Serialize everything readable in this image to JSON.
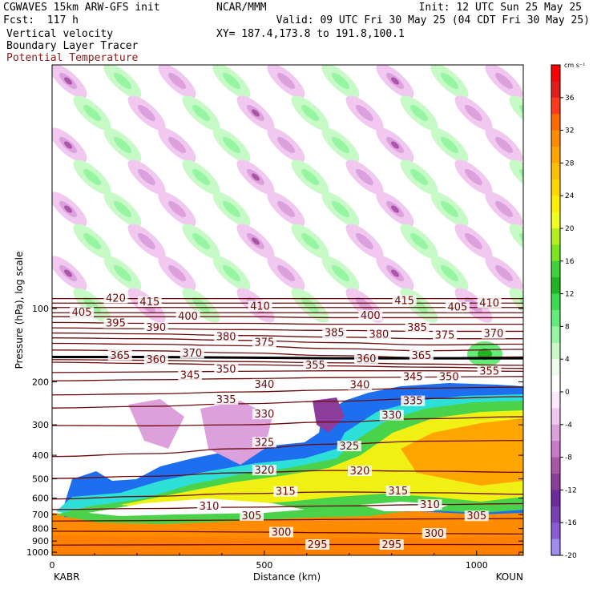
{
  "header": {
    "model": "CGWAVES 15km ARW-GFS init",
    "org": "NCAR/MMM",
    "init": "Init: 12 UTC Sun 25 May 25",
    "fcst": "Fcst:  117 h",
    "valid": "Valid: 09 UTC Fri 30 May 25 (04 CDT Fri 30 May 25)",
    "field1": "Vertical velocity",
    "xy": "XY= 187.4,173.8 to 191.8,100.1",
    "field2": "Boundary Layer Tracer",
    "field3": "Potential Temperature"
  },
  "colors": {
    "theta_line": "#6b0a0a",
    "theta_label_text": "#6b0a0a",
    "field3_text": "#8b1a1a",
    "tropopause": "#000000"
  },
  "chart_data": {
    "type": "heatmap",
    "title": "Vertical velocity / Boundary Layer Tracer / Potential Temperature cross-section",
    "xlabel": "Distance (km)",
    "ylabel": "Pressure (hPa), log scale",
    "y_scale": "log",
    "xlim": [
      0,
      1110
    ],
    "ylim": [
      1030,
      10
    ],
    "x_ticks": [
      0,
      500,
      1000
    ],
    "y_ticks": [
      100,
      200,
      300,
      400,
      500,
      600,
      700,
      800,
      900,
      1000
    ],
    "endpoints": {
      "left": "KABR",
      "right": "KOUN"
    },
    "colorbar": {
      "unit": "cm s⁻¹",
      "labels": [
        36,
        32,
        28,
        24,
        20,
        16,
        12,
        8,
        4,
        0,
        -4,
        -8,
        -12,
        -16,
        -20
      ],
      "bins": [
        {
          "v": 38,
          "color": "#ff0000"
        },
        {
          "v": 36,
          "color": "#e01e1e"
        },
        {
          "v": 34,
          "color": "#ff3a1a"
        },
        {
          "v": 32,
          "color": "#ff6a00"
        },
        {
          "v": 30,
          "color": "#ff8c00"
        },
        {
          "v": 28,
          "color": "#ffa500"
        },
        {
          "v": 26,
          "color": "#ffbe00"
        },
        {
          "v": 24,
          "color": "#ffd700"
        },
        {
          "v": 22,
          "color": "#ffee00"
        },
        {
          "v": 20,
          "color": "#f0ff1e"
        },
        {
          "v": 18,
          "color": "#b4f01e"
        },
        {
          "v": 16,
          "color": "#78e61e"
        },
        {
          "v": 14,
          "color": "#3cd23c"
        },
        {
          "v": 12,
          "color": "#20b420"
        },
        {
          "v": 10,
          "color": "#3cdc50"
        },
        {
          "v": 8,
          "color": "#64ec7a"
        },
        {
          "v": 6,
          "color": "#96f5a0"
        },
        {
          "v": 4,
          "color": "#c8fac8"
        },
        {
          "v": 2,
          "color": "#eefcee"
        },
        {
          "v": 0,
          "color": "#ffffff"
        },
        {
          "v": -2,
          "color": "#fbeafb"
        },
        {
          "v": -4,
          "color": "#f0c8f0"
        },
        {
          "v": -6,
          "color": "#dca0dc"
        },
        {
          "v": -8,
          "color": "#c878c8"
        },
        {
          "v": -10,
          "color": "#aa55aa"
        },
        {
          "v": -12,
          "color": "#8c3c9b"
        },
        {
          "v": -14,
          "color": "#6e28a0"
        },
        {
          "v": -16,
          "color": "#7840b4"
        },
        {
          "v": -18,
          "color": "#8c5ad2"
        },
        {
          "v": -20,
          "color": "#a08cf0"
        }
      ]
    },
    "theta_contours": [
      {
        "value": 295,
        "p": [
          935,
          933,
          931,
          930,
          930,
          931
        ]
      },
      {
        "value": 300,
        "p": [
          820,
          822,
          826,
          832,
          838,
          842
        ]
      },
      {
        "value": 305,
        "p": [
          745,
          742,
          738,
          734,
          730,
          728
        ]
      },
      {
        "value": 310,
        "p": [
          668,
          662,
          654,
          646,
          638,
          632
        ]
      },
      {
        "value": 315,
        "p": [
          605,
          590,
          575,
          566,
          570,
          578
        ]
      },
      {
        "value": 320,
        "p": [
          498,
          488,
          472,
          462,
          465,
          470
        ]
      },
      {
        "value": 325,
        "p": [
          405,
          394,
          376,
          360,
          350,
          348
        ]
      },
      {
        "value": 330,
        "p": [
          302,
          303,
          300,
          292,
          283,
          278
        ]
      },
      {
        "value": 335,
        "p": [
          256,
          252,
          246,
          240,
          234,
          230
        ]
      },
      {
        "value": 340,
        "p": [
          226,
          224,
          220,
          216,
          212,
          210
        ]
      },
      {
        "value": 345,
        "p": [
          198,
          196,
          194,
          192,
          191,
          190
        ]
      },
      {
        "value": 350,
        "p": [
          183,
          182,
          181,
          180,
          180,
          181
        ]
      },
      {
        "value": 355,
        "p": [
          166,
          168,
          170,
          172,
          174,
          176
        ]
      },
      {
        "value": 360,
        "p": [
          162,
          163,
          165,
          167,
          169,
          171
        ]
      },
      {
        "value": 370,
        "p": [
          148,
          149,
          152,
          156,
          159,
          158
        ]
      },
      {
        "value": 375,
        "p": [
          139,
          140,
          142,
          146,
          149,
          147
        ]
      },
      {
        "value": 380,
        "p": [
          132,
          133,
          135,
          138,
          141,
          140
        ]
      },
      {
        "value": 385,
        "p": [
          126,
          127,
          129,
          131,
          133,
          133
        ]
      },
      {
        "value": 390,
        "p": [
          120,
          121,
          122,
          123,
          124,
          124
        ]
      },
      {
        "value": 395,
        "p": [
          114,
          115,
          115,
          116,
          116,
          116
        ]
      },
      {
        "value": 400,
        "p": [
          108,
          108,
          108,
          109,
          109,
          109
        ]
      },
      {
        "value": 405,
        "p": [
          104,
          104,
          104,
          104,
          104,
          104
        ]
      },
      {
        "value": 410,
        "p": [
          99,
          99,
          99,
          99,
          99,
          99
        ]
      },
      {
        "value": 415,
        "p": [
          95,
          95,
          95,
          95,
          95,
          95
        ]
      },
      {
        "value": 420,
        "p": [
          91,
          91,
          91,
          91,
          91,
          91
        ]
      }
    ],
    "theta_labels": [
      {
        "v": "420",
        "x": 150,
        "p": 91
      },
      {
        "v": "415",
        "x": 230,
        "p": 94
      },
      {
        "v": "410",
        "x": 490,
        "p": 98
      },
      {
        "v": "415",
        "x": 830,
        "p": 93
      },
      {
        "v": "405",
        "x": 955,
        "p": 99
      },
      {
        "v": "410",
        "x": 1030,
        "p": 95
      },
      {
        "v": "405",
        "x": 70,
        "p": 104
      },
      {
        "v": "400",
        "x": 320,
        "p": 108
      },
      {
        "v": "400",
        "x": 750,
        "p": 107
      },
      {
        "v": "395",
        "x": 150,
        "p": 115
      },
      {
        "v": "390",
        "x": 245,
        "p": 120
      },
      {
        "v": "385",
        "x": 665,
        "p": 126
      },
      {
        "v": "385",
        "x": 860,
        "p": 120
      },
      {
        "v": "380",
        "x": 410,
        "p": 131
      },
      {
        "v": "375",
        "x": 500,
        "p": 138
      },
      {
        "v": "380",
        "x": 770,
        "p": 128
      },
      {
        "v": "375",
        "x": 925,
        "p": 129
      },
      {
        "v": "370",
        "x": 1040,
        "p": 127
      },
      {
        "v": "365",
        "x": 160,
        "p": 156
      },
      {
        "v": "360",
        "x": 245,
        "p": 162
      },
      {
        "v": "370",
        "x": 330,
        "p": 153
      },
      {
        "v": "360",
        "x": 740,
        "p": 161
      },
      {
        "v": "365",
        "x": 870,
        "p": 156
      },
      {
        "v": "355",
        "x": 620,
        "p": 171
      },
      {
        "v": "350",
        "x": 410,
        "p": 178
      },
      {
        "v": "355",
        "x": 1030,
        "p": 181
      },
      {
        "v": "345",
        "x": 325,
        "p": 188
      },
      {
        "v": "345",
        "x": 850,
        "p": 191
      },
      {
        "v": "350",
        "x": 935,
        "p": 191
      },
      {
        "v": "340",
        "x": 500,
        "p": 205
      },
      {
        "v": "340",
        "x": 725,
        "p": 206
      },
      {
        "v": "335",
        "x": 410,
        "p": 237
      },
      {
        "v": "335",
        "x": 850,
        "p": 240
      },
      {
        "v": "330",
        "x": 500,
        "p": 272
      },
      {
        "v": "330",
        "x": 800,
        "p": 275
      },
      {
        "v": "325",
        "x": 500,
        "p": 355
      },
      {
        "v": "325",
        "x": 700,
        "p": 368
      },
      {
        "v": "320",
        "x": 500,
        "p": 462
      },
      {
        "v": "320",
        "x": 725,
        "p": 465
      },
      {
        "v": "315",
        "x": 550,
        "p": 565
      },
      {
        "v": "315",
        "x": 815,
        "p": 562
      },
      {
        "v": "310",
        "x": 370,
        "p": 650
      },
      {
        "v": "310",
        "x": 890,
        "p": 640
      },
      {
        "v": "305",
        "x": 470,
        "p": 710
      },
      {
        "v": "305",
        "x": 1000,
        "p": 712
      },
      {
        "v": "300",
        "x": 540,
        "p": 830
      },
      {
        "v": "300",
        "x": 900,
        "p": 840
      },
      {
        "v": "295",
        "x": 625,
        "p": 933
      },
      {
        "v": "295",
        "x": 800,
        "p": 933
      }
    ],
    "tropopause": {
      "p": [
        158,
        158,
        159,
        160,
        160,
        160
      ]
    },
    "tracer_layers": [
      {
        "name": "pbl-blue",
        "level": "-",
        "color": "#1e6ef0"
      },
      {
        "name": "pbl-cyan",
        "level": "-",
        "color": "#2ce0d8"
      },
      {
        "name": "pbl-green",
        "level": "-",
        "color": "#4ad24a"
      },
      {
        "name": "pbl-yellow",
        "level": "-",
        "color": "#f0f014"
      },
      {
        "name": "pbl-orange",
        "level": "-",
        "color": "#ff8c00"
      }
    ]
  }
}
